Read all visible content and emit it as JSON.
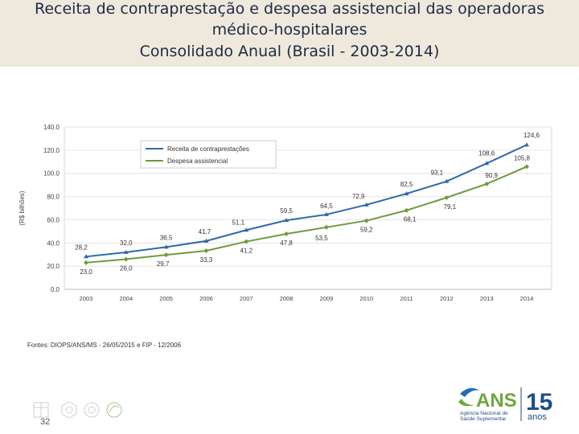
{
  "header": {
    "title_line1": "Receita de contraprestação e despesa assistencial das operadoras",
    "title_line2": "médico-hospitalares",
    "title_line3": "Consolidado Anual (Brasil - 2003-2014)"
  },
  "chart_data": {
    "type": "line",
    "ylabel": "(R$ bilhões)",
    "ylim": [
      0,
      140
    ],
    "yticks": [
      "0.0",
      "20.0",
      "40.0",
      "60.0",
      "80.0",
      "100.0",
      "120.0",
      "140.0"
    ],
    "yticks_values": [
      0,
      20,
      40,
      60,
      80,
      100,
      120,
      140
    ],
    "categories": [
      "2003",
      "2004",
      "2005",
      "2006",
      "2007",
      "2008",
      "2009",
      "2010",
      "2011",
      "2012",
      "2013",
      "2014"
    ],
    "legend_position": "top-left",
    "series": [
      {
        "name": "Receita de contraprestações",
        "color": "#2e6aa8",
        "values": [
          28.2,
          32.0,
          36.5,
          41.7,
          51.1,
          59.5,
          64.5,
          72.9,
          82.5,
          93.1,
          108.6,
          124.6
        ],
        "labels": [
          "28,2",
          "32,0",
          "36,5",
          "41,7",
          "51,1",
          "59,5",
          "64,5",
          "72,9",
          "82,5",
          "93,1",
          "108,6",
          "124,6"
        ]
      },
      {
        "name": "Despesa assistencial",
        "color": "#6f9a3e",
        "values": [
          23.0,
          26.0,
          29.7,
          33.3,
          41.2,
          47.8,
          53.5,
          59.2,
          68.1,
          79.1,
          90.9,
          105.8
        ],
        "labels": [
          "23,0",
          "26,0",
          "29,7",
          "33,3",
          "41,2",
          "47,8",
          "53,5",
          "59,2",
          "68,1",
          "79,1",
          "90,9",
          "105,8"
        ]
      }
    ]
  },
  "footer": {
    "source": "Fontes: DIOPS/ANS/MS - 26/05/2015 e FIP - 12/2006",
    "page_number": "32",
    "logo_text": "ANS",
    "logo_subtext1": "Agência Nacional de",
    "logo_subtext2": "Saúde Suplementar",
    "anniversary_number": "15",
    "anniversary_word": "anos"
  }
}
